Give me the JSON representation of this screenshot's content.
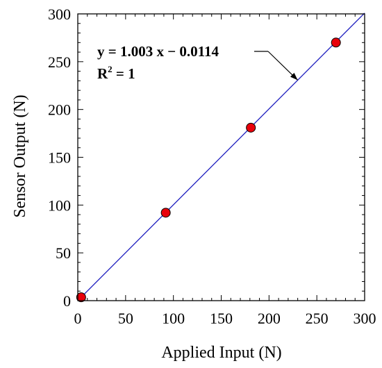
{
  "chart_data": {
    "type": "scatter",
    "xlabel": "Applied Input (N)",
    "ylabel": "Sensor Output (N)",
    "xlim": [
      0,
      300
    ],
    "ylim": [
      0,
      300
    ],
    "xticks": [
      "0",
      "50",
      "100",
      "150",
      "200",
      "250",
      "300"
    ],
    "yticks": [
      "0",
      "50",
      "100",
      "150",
      "200",
      "250",
      "300"
    ],
    "grid": false,
    "points": [
      {
        "x": 3.5,
        "y": 3.5
      },
      {
        "x": 92,
        "y": 92
      },
      {
        "x": 181,
        "y": 181
      },
      {
        "x": 270,
        "y": 270
      }
    ],
    "fit": {
      "slope": 1.003,
      "intercept": -0.0114
    },
    "annotations": {
      "equation": "y = 1.003 x − 0.0114",
      "r2_prefix": "R",
      "r2_sup": "2",
      "r2_suffix": " = 1"
    },
    "colors": {
      "marker_fill": "#e8000b",
      "marker_stroke": "#000000",
      "fit_line": "#1f1fbf"
    }
  }
}
